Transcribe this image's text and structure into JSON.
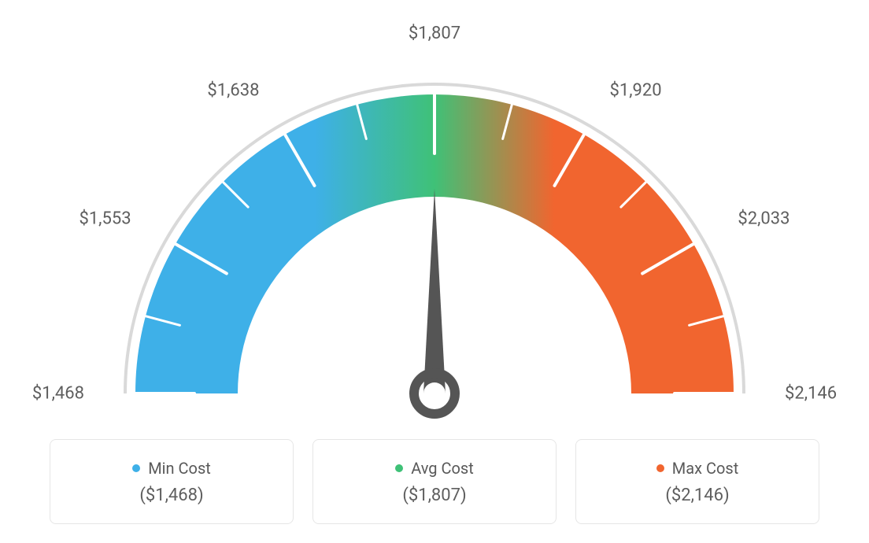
{
  "gauge": {
    "type": "gauge",
    "min_value": 1468,
    "max_value": 2146,
    "avg_value": 1807,
    "needle_value": 1807,
    "tick_labels": [
      "$1,468",
      "$1,553",
      "$1,638",
      "$1,807",
      "$1,920",
      "$2,033",
      "$2,146"
    ],
    "tick_angles_deg": [
      180,
      150,
      120,
      90,
      60,
      30,
      0
    ],
    "minor_tick_count": 7,
    "arc_outer_radius": 380,
    "arc_inner_radius": 250,
    "arc_thin_outer_radius": 395,
    "colors": {
      "min": "#3eb0e8",
      "avg": "#3fc177",
      "max": "#f1652f",
      "thin_arc": "#d9d9d9",
      "tick": "#ffffff",
      "needle": "#555555",
      "needle_ring": "#555555",
      "background": "#ffffff",
      "label_text": "#5e5e5e",
      "card_border": "#e6e6e6"
    },
    "label_fontsize": 22,
    "card_title_fontsize": 20,
    "card_value_fontsize": 22
  },
  "cards": {
    "min": {
      "label": "Min Cost",
      "value": "($1,468)",
      "dot_color": "#3eb0e8"
    },
    "avg": {
      "label": "Avg Cost",
      "value": "($1,807)",
      "dot_color": "#3fc177"
    },
    "max": {
      "label": "Max Cost",
      "value": "($2,146)",
      "dot_color": "#f1652f"
    }
  }
}
